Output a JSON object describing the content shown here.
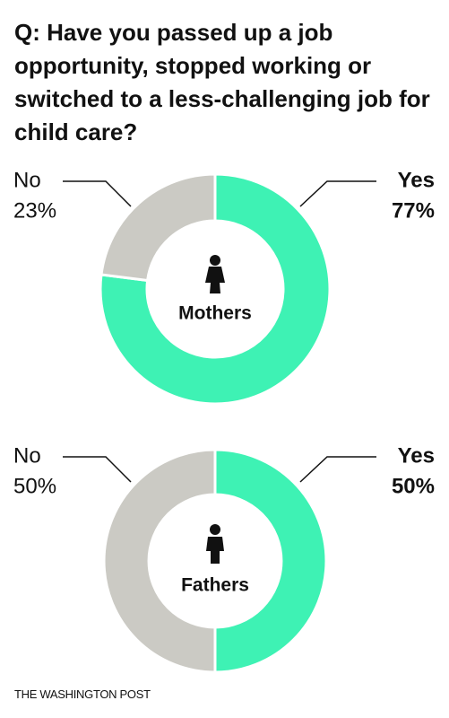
{
  "title": "Q: Have you passed up a job opportunity, stopped working or switched to a less-challenging job for child care?",
  "source": "THE WASHINGTON POST",
  "chart_data": [
    {
      "type": "donut",
      "center_label": "Mothers",
      "categories": [
        "Yes",
        "No"
      ],
      "values": [
        77,
        23
      ],
      "value_labels": [
        "77%",
        "23%"
      ],
      "colors": [
        "#3ef2b4",
        "#cbcac4"
      ]
    },
    {
      "type": "donut",
      "center_label": "Fathers",
      "categories": [
        "Yes",
        "No"
      ],
      "values": [
        50,
        50
      ],
      "value_labels": [
        "50%",
        "50%"
      ],
      "colors": [
        "#3ef2b4",
        "#cbcac4"
      ]
    }
  ]
}
